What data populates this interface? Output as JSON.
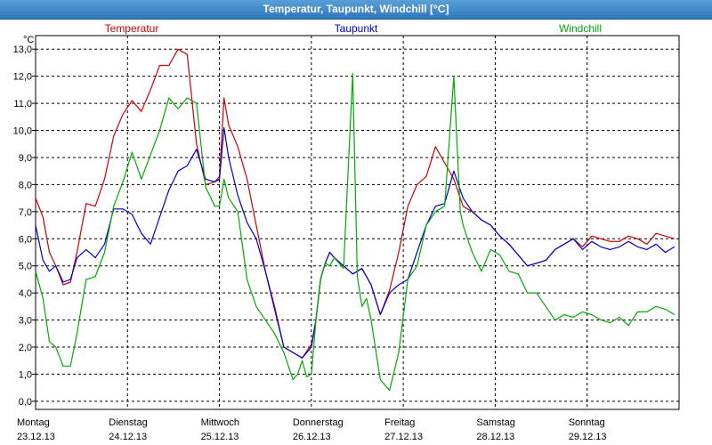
{
  "window": {
    "title": "Temperatur, Taupunkt, Windchill [°C]"
  },
  "chart_data": {
    "type": "line",
    "title": "Temperatur, Taupunkt, Windchill [°C]",
    "ylabel": "°C",
    "ylim": [
      -0.3,
      13.5
    ],
    "xlim": [
      0,
      7
    ],
    "yticks": [
      "0,0",
      "1,0",
      "2,0",
      "3,0",
      "4,0",
      "5,0",
      "6,0",
      "7,0",
      "8,0",
      "9,0",
      "10,0",
      "11,0",
      "12,0",
      "13,0"
    ],
    "xticks": [
      {
        "day": "Montag",
        "date": "23.12.13"
      },
      {
        "day": "Dienstag",
        "date": "24.12.13"
      },
      {
        "day": "Mittwoch",
        "date": "25.12.13"
      },
      {
        "day": "Donnerstag",
        "date": "26.12.13"
      },
      {
        "day": "Freitag",
        "date": "27.12.13"
      },
      {
        "day": "Samstag",
        "date": "28.12.13"
      },
      {
        "day": "Sonntag",
        "date": "29.12.13"
      }
    ],
    "grid": true,
    "legend": "top",
    "series": [
      {
        "name": "Temperatur",
        "color": "#cc0000",
        "x": [
          0,
          0.08,
          0.15,
          0.22,
          0.3,
          0.38,
          0.45,
          0.55,
          0.65,
          0.75,
          0.85,
          0.95,
          1.05,
          1.15,
          1.25,
          1.35,
          1.45,
          1.55,
          1.65,
          1.75,
          1.85,
          1.95,
          2.0,
          2.05,
          2.1,
          2.2,
          2.3,
          2.4,
          2.5,
          2.6,
          2.7,
          2.8,
          2.9,
          3.0,
          3.05,
          3.1,
          3.15,
          3.2,
          3.25,
          3.35,
          3.45,
          3.55,
          3.65,
          3.75,
          3.85,
          3.95,
          4.05,
          4.15,
          4.25,
          4.35,
          4.45,
          4.55,
          4.65,
          4.75,
          4.85,
          4.95,
          5.05,
          5.15,
          5.25,
          5.35,
          5.45,
          5.55,
          5.65,
          5.75,
          5.85,
          5.95,
          6.05,
          6.15,
          6.25,
          6.35,
          6.45,
          6.55,
          6.65,
          6.75,
          6.85,
          6.95
        ],
        "values": [
          7.5,
          6.8,
          5.5,
          5.0,
          4.3,
          4.4,
          5.5,
          7.3,
          7.2,
          8.2,
          9.8,
          10.6,
          11.1,
          10.7,
          11.5,
          12.4,
          12.4,
          13.0,
          12.8,
          9.5,
          8.0,
          8.1,
          8.3,
          11.2,
          10.2,
          9.4,
          8.2,
          6.5,
          4.8,
          3.5,
          2.0,
          1.8,
          1.6,
          2.1,
          3.0,
          4.5,
          5.1,
          5.5,
          5.3,
          5.0,
          4.7,
          4.9,
          4.3,
          3.2,
          4.1,
          5.5,
          7.2,
          8.0,
          8.3,
          9.4,
          8.8,
          8.2,
          7.2,
          7.0,
          6.7,
          6.5,
          6.1,
          5.8,
          5.4,
          5.0,
          5.1,
          5.2,
          5.6,
          5.8,
          6.0,
          5.7,
          6.1,
          6.0,
          5.9,
          5.9,
          6.1,
          6.0,
          5.8,
          6.2,
          6.1,
          6.0
        ]
      },
      {
        "name": "Taupunkt",
        "color": "#0000cc",
        "x": [
          0,
          0.08,
          0.15,
          0.22,
          0.3,
          0.38,
          0.45,
          0.55,
          0.65,
          0.75,
          0.85,
          0.95,
          1.05,
          1.15,
          1.25,
          1.35,
          1.45,
          1.55,
          1.65,
          1.75,
          1.85,
          1.95,
          2.0,
          2.05,
          2.1,
          2.2,
          2.3,
          2.4,
          2.5,
          2.6,
          2.7,
          2.8,
          2.9,
          3.0,
          3.05,
          3.1,
          3.15,
          3.2,
          3.25,
          3.35,
          3.45,
          3.55,
          3.65,
          3.75,
          3.85,
          3.95,
          4.05,
          4.15,
          4.25,
          4.35,
          4.45,
          4.55,
          4.65,
          4.75,
          4.85,
          4.95,
          5.05,
          5.15,
          5.25,
          5.35,
          5.45,
          5.55,
          5.65,
          5.75,
          5.85,
          5.95,
          6.05,
          6.15,
          6.25,
          6.35,
          6.45,
          6.55,
          6.65,
          6.75,
          6.85,
          6.95
        ],
        "values": [
          6.5,
          5.2,
          4.8,
          5.0,
          4.4,
          4.5,
          5.3,
          5.6,
          5.3,
          5.8,
          7.1,
          7.1,
          6.9,
          6.2,
          5.8,
          6.8,
          7.8,
          8.5,
          8.7,
          9.3,
          8.2,
          8.1,
          8.2,
          10.1,
          9.0,
          7.6,
          6.6,
          6.0,
          4.8,
          3.4,
          2.0,
          1.8,
          1.6,
          2.0,
          3.0,
          4.5,
          5.1,
          5.5,
          5.3,
          5.0,
          4.7,
          4.9,
          4.3,
          3.2,
          4.0,
          4.3,
          4.5,
          5.5,
          6.5,
          7.2,
          7.3,
          8.5,
          7.5,
          7.0,
          6.7,
          6.5,
          6.1,
          5.8,
          5.4,
          5.0,
          5.1,
          5.2,
          5.6,
          5.8,
          6.0,
          5.6,
          5.9,
          5.7,
          5.6,
          5.7,
          5.9,
          5.7,
          5.6,
          5.8,
          5.5,
          5.7
        ]
      },
      {
        "name": "Windchill",
        "color": "#00aa00",
        "x": [
          0,
          0.08,
          0.15,
          0.22,
          0.3,
          0.38,
          0.45,
          0.55,
          0.65,
          0.75,
          0.85,
          0.95,
          1.05,
          1.15,
          1.25,
          1.35,
          1.45,
          1.55,
          1.65,
          1.75,
          1.85,
          1.95,
          2.0,
          2.05,
          2.1,
          2.2,
          2.3,
          2.4,
          2.5,
          2.6,
          2.7,
          2.8,
          2.85,
          2.9,
          2.95,
          3.0,
          3.05,
          3.1,
          3.15,
          3.2,
          3.25,
          3.35,
          3.45,
          3.5,
          3.55,
          3.6,
          3.65,
          3.75,
          3.85,
          3.95,
          4.05,
          4.15,
          4.25,
          4.35,
          4.45,
          4.55,
          4.62,
          4.65,
          4.7,
          4.75,
          4.85,
          4.95,
          5.05,
          5.15,
          5.25,
          5.35,
          5.45,
          5.55,
          5.65,
          5.75,
          5.85,
          5.95,
          6.05,
          6.15,
          6.25,
          6.35,
          6.45,
          6.55,
          6.65,
          6.75,
          6.85,
          6.95
        ],
        "values": [
          4.8,
          3.8,
          2.2,
          2.0,
          1.3,
          1.3,
          2.5,
          4.5,
          4.6,
          5.5,
          7.2,
          8.1,
          9.2,
          8.2,
          9.1,
          10.0,
          11.2,
          10.8,
          11.2,
          11.0,
          7.9,
          7.2,
          7.2,
          8.2,
          7.5,
          7.0,
          4.5,
          3.5,
          3.0,
          2.5,
          1.8,
          0.8,
          1.0,
          1.5,
          0.9,
          1.0,
          3.0,
          4.5,
          5.1,
          5.0,
          5.3,
          4.9,
          12.1,
          4.6,
          3.5,
          3.8,
          3.0,
          0.8,
          0.4,
          1.8,
          4.5,
          5.0,
          6.5,
          7.0,
          7.2,
          12.0,
          7.0,
          6.5,
          6.0,
          5.5,
          4.8,
          5.6,
          5.4,
          4.8,
          4.7,
          4.0,
          4.0,
          3.5,
          3.0,
          3.2,
          3.1,
          3.3,
          3.2,
          3.0,
          2.9,
          3.1,
          2.8,
          3.3,
          3.3,
          3.5,
          3.4,
          3.2
        ]
      }
    ]
  }
}
